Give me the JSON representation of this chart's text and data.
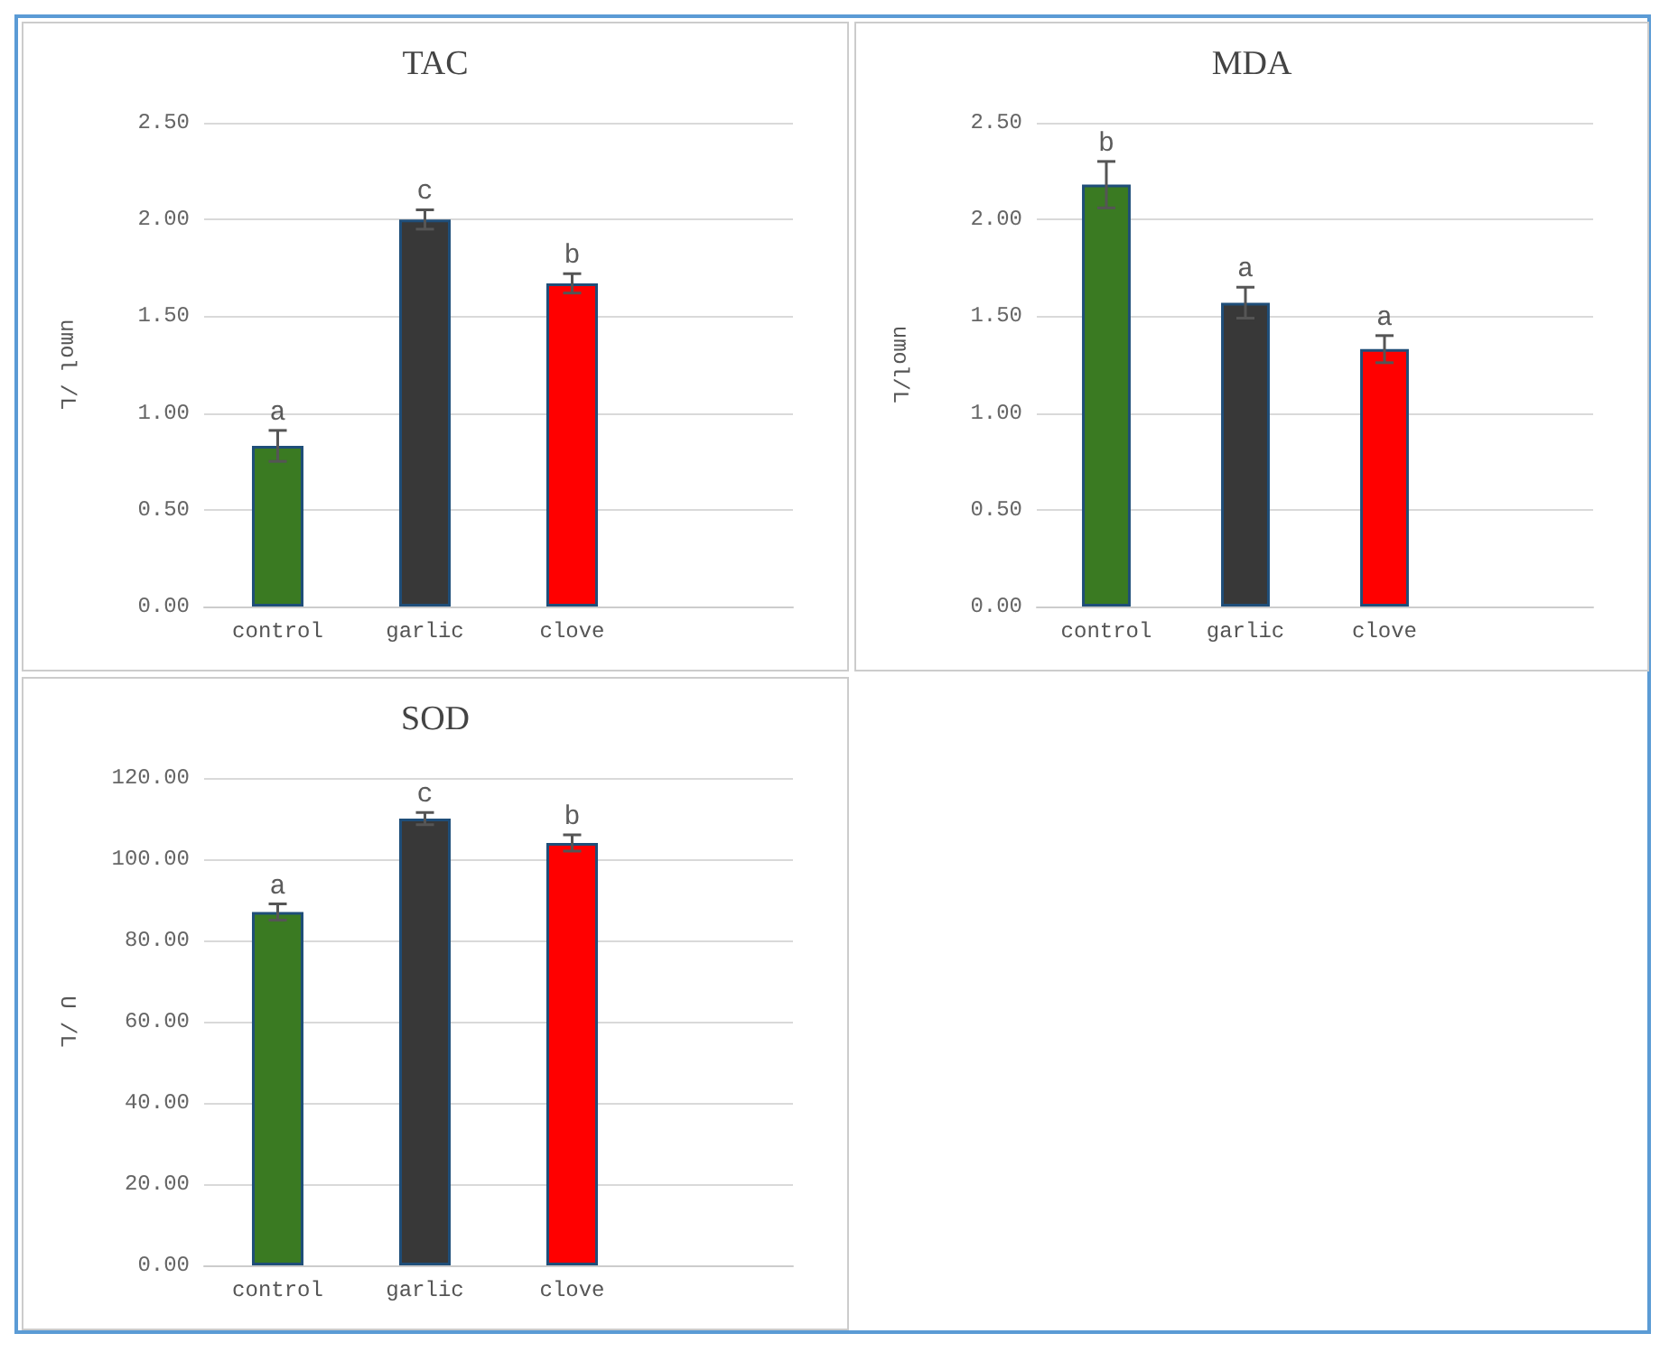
{
  "chart_data": [
    {
      "type": "bar",
      "title": "TAC",
      "ylabel": "umol /L",
      "categories": [
        "control",
        "garlic",
        "clove"
      ],
      "values": [
        0.83,
        2.0,
        1.67
      ],
      "colors": [
        "#3a7a22",
        "#383838",
        "#ff0000"
      ],
      "errors": [
        0.08,
        0.05,
        0.05
      ],
      "ylim": [
        0,
        2.5
      ],
      "yticks": [
        {
          "value": 0,
          "label": "0.00"
        },
        {
          "value": 0.5,
          "label": "0.50"
        },
        {
          "value": 1,
          "label": "1.00"
        },
        {
          "value": 1.5,
          "label": "1.50"
        },
        {
          "value": 2,
          "label": "2.00"
        },
        {
          "value": 2.5,
          "label": "2.50"
        }
      ],
      "grid": "y",
      "annotations": [
        {
          "text": "a",
          "x": "control",
          "y": 0.91
        },
        {
          "text": "c",
          "x": "garlic",
          "y": 2.05
        },
        {
          "text": "b",
          "x": "clove",
          "y": 1.72
        }
      ]
    },
    {
      "type": "bar",
      "title": "MDA",
      "ylabel": "umol/L",
      "categories": [
        "control",
        "garlic",
        "clove"
      ],
      "values": [
        2.18,
        1.57,
        1.33
      ],
      "colors": [
        "#3a7a22",
        "#383838",
        "#ff0000"
      ],
      "errors": [
        0.12,
        0.08,
        0.07
      ],
      "ylim": [
        0,
        2.5
      ],
      "yticks": [
        {
          "value": 0,
          "label": "0.00"
        },
        {
          "value": 0.5,
          "label": "0.50"
        },
        {
          "value": 1,
          "label": "1.00"
        },
        {
          "value": 1.5,
          "label": "1.50"
        },
        {
          "value": 2,
          "label": "2.00"
        },
        {
          "value": 2.5,
          "label": "2.50"
        }
      ],
      "grid": "y",
      "annotations": [
        {
          "text": "b",
          "x": "control",
          "y": 2.3
        },
        {
          "text": "a",
          "x": "garlic",
          "y": 1.65
        },
        {
          "text": "a",
          "x": "clove",
          "y": 1.4
        }
      ]
    },
    {
      "type": "bar",
      "title": "SOD",
      "ylabel": "U /L",
      "categories": [
        "control",
        "garlic",
        "clove"
      ],
      "values": [
        87,
        110,
        104
      ],
      "colors": [
        "#3a7a22",
        "#383838",
        "#ff0000"
      ],
      "errors": [
        2,
        1.5,
        2
      ],
      "ylim": [
        0,
        120
      ],
      "yticks": [
        {
          "value": 0,
          "label": "0.00"
        },
        {
          "value": 20,
          "label": "20.00"
        },
        {
          "value": 40,
          "label": "40.00"
        },
        {
          "value": 60,
          "label": "60.00"
        },
        {
          "value": 80,
          "label": "80.00"
        },
        {
          "value": 100,
          "label": "100.00"
        },
        {
          "value": 120,
          "label": "120.00"
        }
      ],
      "grid": "y",
      "annotations": [
        {
          "text": "a",
          "x": "control",
          "y": 89
        },
        {
          "text": "c",
          "x": "garlic",
          "y": 111.5
        },
        {
          "text": "b",
          "x": "clove",
          "y": 106
        }
      ]
    }
  ]
}
